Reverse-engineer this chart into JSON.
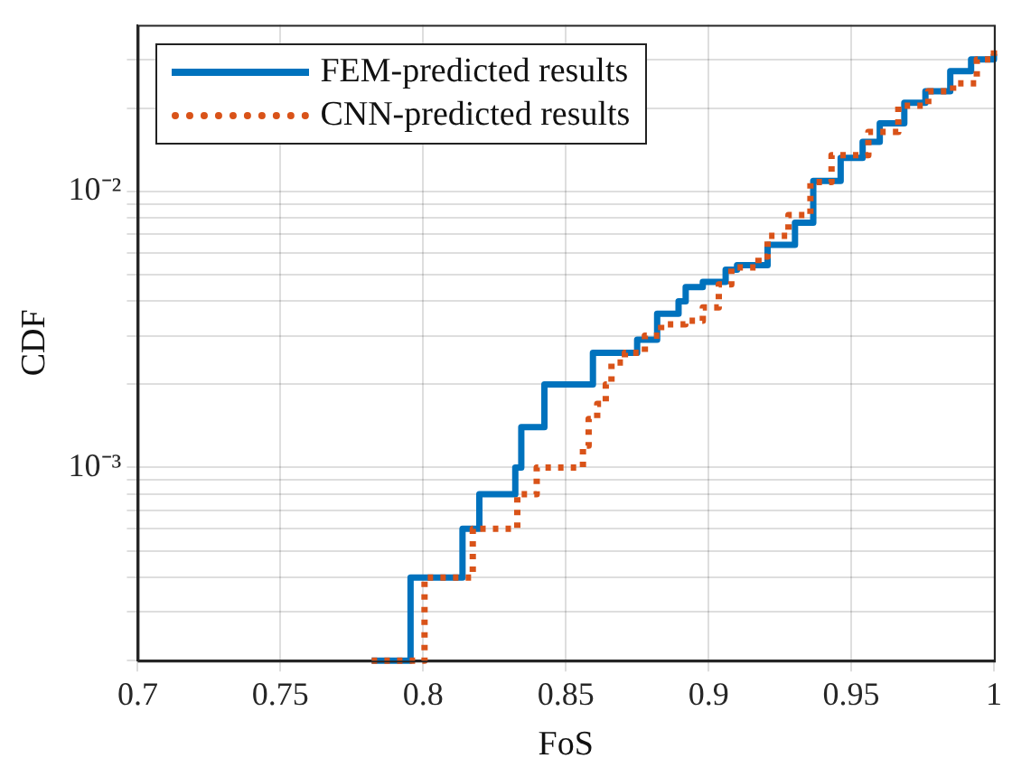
{
  "chart_data": {
    "type": "step",
    "xlabel": "FoS",
    "ylabel": "CDF",
    "log": "y",
    "grid": true,
    "legend": "top left",
    "xlim": [
      0.7,
      1
    ],
    "xticks": [
      0.7,
      0.75,
      0.8,
      0.85,
      0.9,
      0.95,
      1
    ],
    "ylim": [
      0.0002,
      0.04
    ],
    "yticks": [
      {
        "value": 0.0002,
        "label": null
      },
      {
        "value": 0.0003,
        "label": null
      },
      {
        "value": 0.0004,
        "label": null
      },
      {
        "value": 0.0005,
        "label": null
      },
      {
        "value": 0.0006,
        "label": null
      },
      {
        "value": 0.0007,
        "label": null
      },
      {
        "value": 0.0008,
        "label": null
      },
      {
        "value": 0.0009,
        "label": null
      },
      {
        "value": 0.001,
        "label": "10⁻³"
      },
      {
        "value": 0.002,
        "label": null
      },
      {
        "value": 0.003,
        "label": null
      },
      {
        "value": 0.004,
        "label": null
      },
      {
        "value": 0.005,
        "label": null
      },
      {
        "value": 0.006,
        "label": null
      },
      {
        "value": 0.007,
        "label": null
      },
      {
        "value": 0.008,
        "label": null
      },
      {
        "value": 0.009,
        "label": null
      },
      {
        "value": 0.01,
        "label": "10⁻²"
      },
      {
        "value": 0.02,
        "label": null
      },
      {
        "value": 0.03,
        "label": null
      }
    ],
    "series": [
      {
        "name": "FEM-predicted results",
        "color": "#0072bd",
        "line_style": "solid",
        "x": [
          0.782,
          0.7956,
          0.8138,
          0.8197,
          0.8323,
          0.8344,
          0.8425,
          0.8595,
          0.875,
          0.882,
          0.8895,
          0.892,
          0.898,
          0.906,
          0.91,
          0.9207,
          0.9303,
          0.9367,
          0.9463,
          0.954,
          0.96,
          0.9686,
          0.976,
          0.9847,
          0.992,
          1
        ],
        "values": [
          0.0002,
          0.0004,
          0.0006,
          0.0008,
          0.001,
          0.0014,
          0.002,
          0.0026,
          0.0029,
          0.0036,
          0.004,
          0.0045,
          0.0047,
          0.0052,
          0.0054,
          0.0064,
          0.0077,
          0.0109,
          0.0132,
          0.0151,
          0.0176,
          0.0209,
          0.023,
          0.0272,
          0.03,
          0.0314
        ]
      },
      {
        "name": "CNN-predicted results",
        "color": "#d95319",
        "line_style": "dotted",
        "x": [
          0.782,
          0.8005,
          0.8174,
          0.833,
          0.8398,
          0.856,
          0.858,
          0.861,
          0.864,
          0.866,
          0.8707,
          0.8777,
          0.8834,
          0.8919,
          0.898,
          0.9036,
          0.908,
          0.9175,
          0.9207,
          0.928,
          0.9357,
          0.9431,
          0.956,
          0.9665,
          0.977,
          0.9857,
          0.994,
          1
        ],
        "values": [
          0.0002,
          0.0004,
          0.0006,
          0.0008,
          0.001,
          0.0012,
          0.0015,
          0.0017,
          0.002,
          0.0024,
          0.0026,
          0.003,
          0.0033,
          0.0034,
          0.0038,
          0.0046,
          0.0053,
          0.0058,
          0.0069,
          0.0082,
          0.0108,
          0.0135,
          0.0164,
          0.0204,
          0.023,
          0.0246,
          0.03,
          0.0337
        ]
      }
    ]
  }
}
